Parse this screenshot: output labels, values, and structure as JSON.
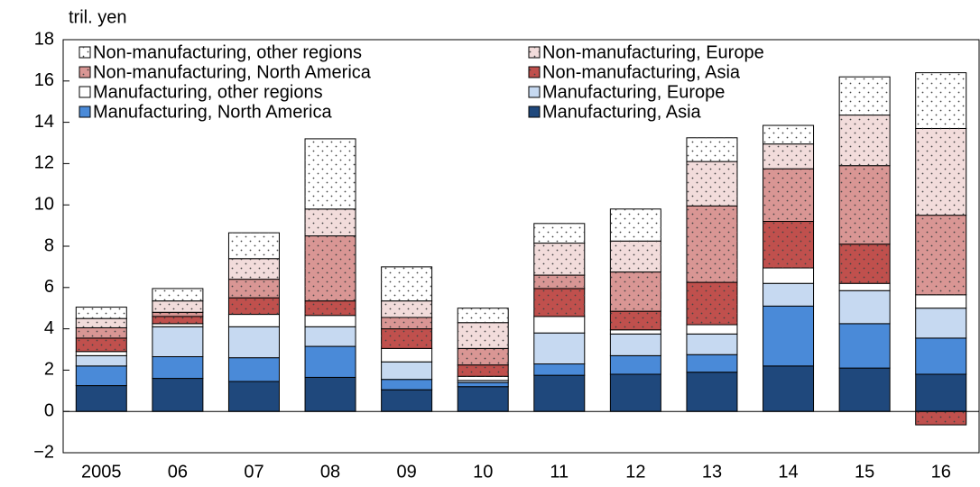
{
  "chart_data": {
    "type": "stacked-bar",
    "y_label": "tril. yen",
    "categories": [
      "2005",
      "06",
      "07",
      "08",
      "09",
      "10",
      "11",
      "12",
      "13",
      "14",
      "15",
      "16"
    ],
    "series": [
      {
        "name": "Manufacturing, Asia",
        "color": "#1f487c",
        "values": [
          1.25,
          1.6,
          1.45,
          1.65,
          1.05,
          1.2,
          1.75,
          1.8,
          1.9,
          2.2,
          2.1,
          1.8
        ]
      },
      {
        "name": "Manufacturing, North America",
        "color": "#4a8ad8",
        "values": [
          0.95,
          1.05,
          1.15,
          1.5,
          0.5,
          0.2,
          0.55,
          0.9,
          0.85,
          2.9,
          2.15,
          1.75
        ]
      },
      {
        "name": "Manufacturing, Europe",
        "color": "#c6d9f1",
        "values": [
          0.5,
          1.45,
          1.5,
          0.95,
          0.85,
          0.1,
          1.5,
          1.05,
          1.0,
          1.1,
          1.6,
          1.45
        ]
      },
      {
        "name": "Manufacturing, other regions",
        "color": "#ffffff",
        "values": [
          0.2,
          0.15,
          0.6,
          0.55,
          0.65,
          0.2,
          0.8,
          0.2,
          0.45,
          0.75,
          0.35,
          0.65
        ]
      },
      {
        "name": "Non-manufacturing, Asia",
        "color": "#c0504d",
        "pattern": "dots",
        "values": [
          0.65,
          0.35,
          0.8,
          0.7,
          0.95,
          0.55,
          1.35,
          0.9,
          2.05,
          2.25,
          1.9,
          -0.65
        ]
      },
      {
        "name": "Non-manufacturing, North America",
        "color": "#d99694",
        "pattern": "dots",
        "values": [
          0.5,
          0.2,
          0.9,
          3.15,
          0.55,
          0.8,
          0.65,
          1.9,
          3.7,
          2.55,
          3.8,
          3.85
        ]
      },
      {
        "name": "Non-manufacturing, Europe",
        "color": "#f2dcdb",
        "pattern": "dots",
        "values": [
          0.45,
          0.55,
          1.0,
          1.3,
          0.8,
          1.25,
          1.55,
          1.5,
          2.15,
          1.2,
          2.45,
          4.2
        ]
      },
      {
        "name": "Non-manufacturing, other regions",
        "color": "#ffffff",
        "pattern": "dots",
        "values": [
          0.55,
          0.6,
          1.25,
          3.4,
          1.65,
          0.7,
          0.95,
          1.55,
          1.15,
          0.9,
          1.85,
          2.7
        ]
      }
    ],
    "ylim": [
      -2,
      18
    ],
    "yticks": [
      {
        "value": -2,
        "label": "−2"
      },
      0,
      2,
      4,
      6,
      8,
      10,
      12,
      14,
      16,
      18
    ],
    "legend": "upper left"
  }
}
